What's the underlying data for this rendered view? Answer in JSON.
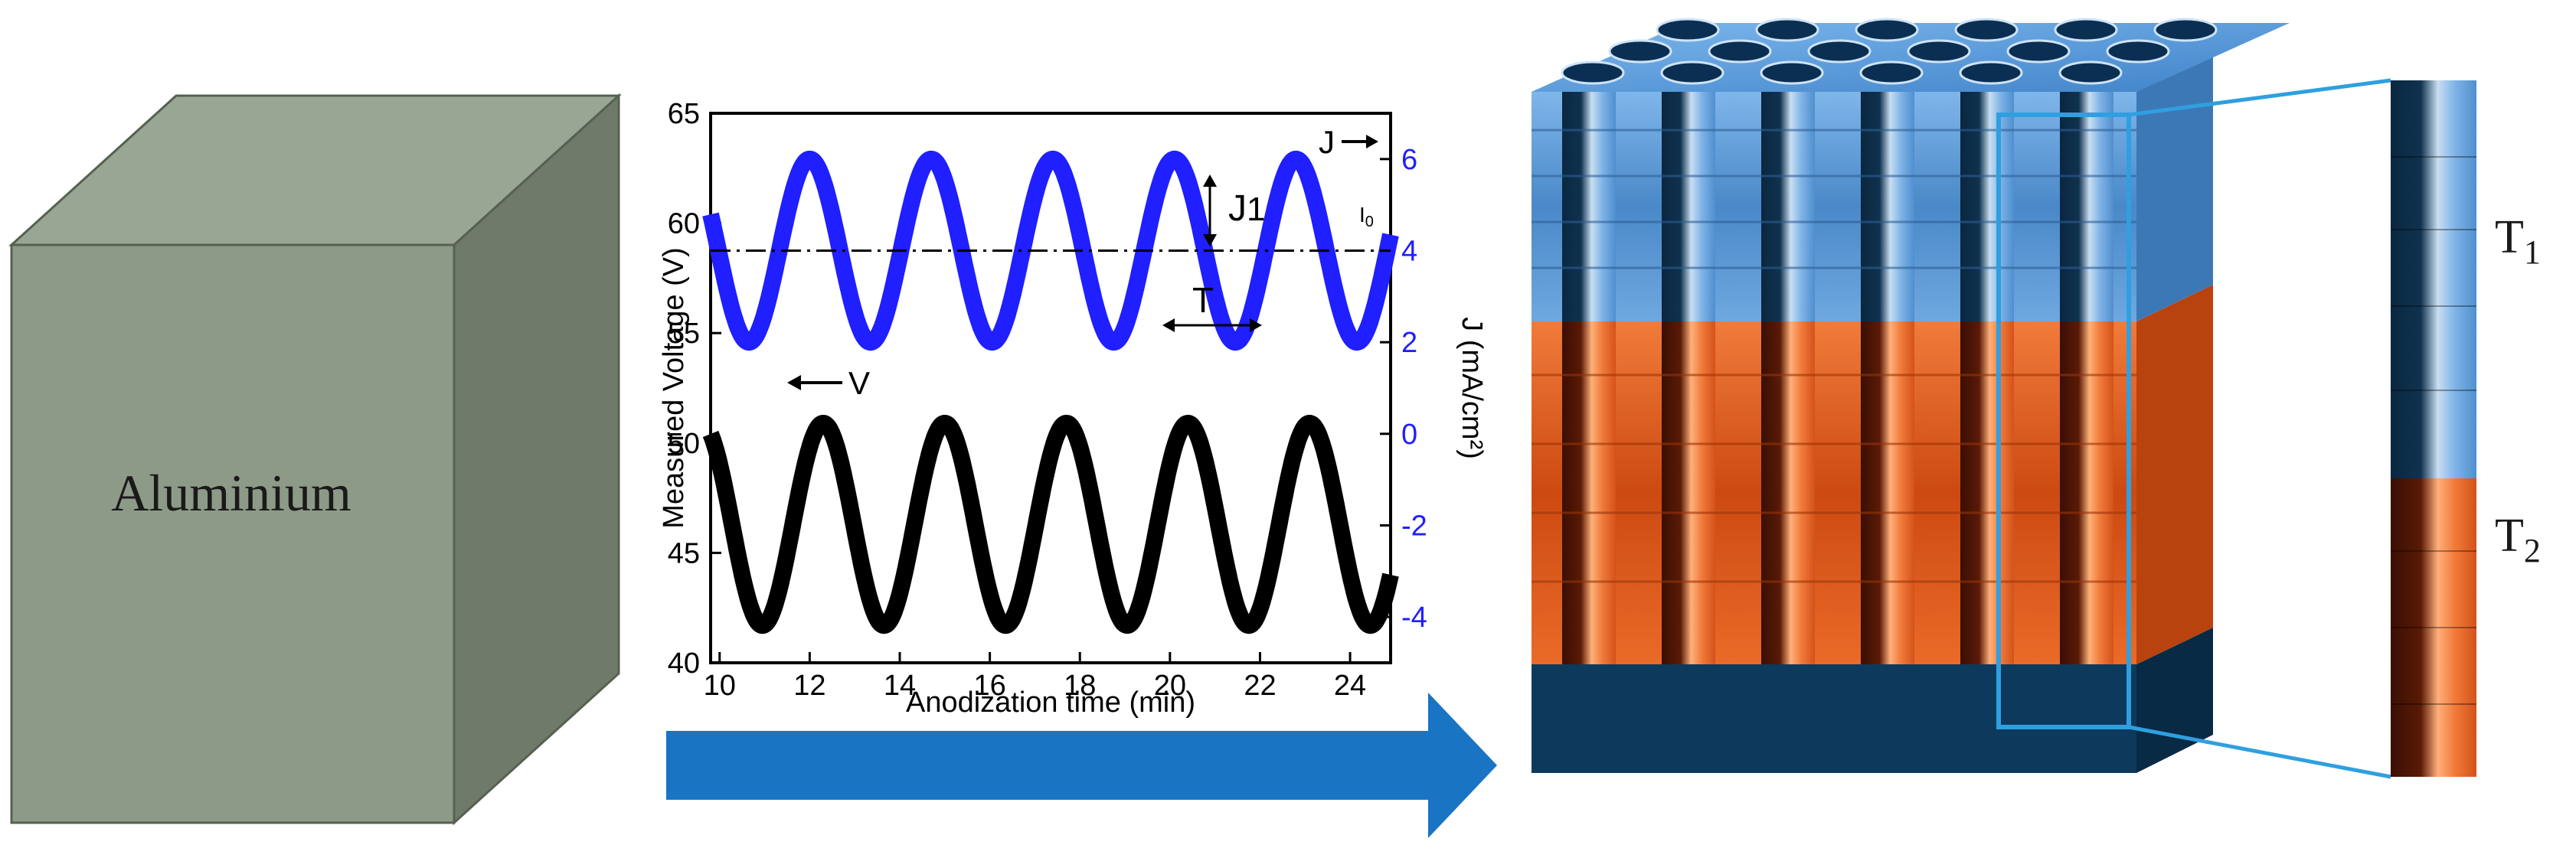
{
  "cube": {
    "label": "Aluminium",
    "colors": {
      "front": "#8e9a88",
      "top": "#9aa694",
      "side": "#6f7a6b",
      "edge": "#56614f"
    }
  },
  "arrow": {
    "color": "#1a74c4"
  },
  "chart_data": {
    "type": "line",
    "xlabel": "Anodization time (min)",
    "ylabel": "Measured Voltage (V)",
    "y2label": "J (mA/cm²)",
    "xlim": [
      9.8,
      24.9
    ],
    "ylim": [
      40,
      65
    ],
    "y2lim": [
      -5,
      7
    ],
    "xticks": [
      10,
      12,
      14,
      16,
      18,
      20,
      22,
      24
    ],
    "yticks": [
      40,
      45,
      50,
      55,
      60,
      65
    ],
    "y2ticks": [
      -4,
      -2,
      0,
      2,
      4,
      6
    ],
    "series": [
      {
        "name": "J",
        "axis": "right",
        "color": "#1f1fff",
        "mean": 4.0,
        "amplitude": 2.0,
        "period": 2.7,
        "peak_at": 12.0
      },
      {
        "name": "V",
        "axis": "left",
        "color": "#000000",
        "mean": 46.3,
        "amplitude": 4.6,
        "period": 2.7,
        "peak_at": 12.3
      }
    ],
    "reference_line": {
      "axis": "right",
      "value": 4.0,
      "style": "dash-dot"
    },
    "annotations": {
      "J_arrow": "J",
      "V_arrow": "V",
      "J1": "J",
      "J1_sub": "1",
      "I0": "I",
      "I0_sub": "0",
      "T": "T"
    },
    "grid": false
  },
  "nanostructure": {
    "colors": {
      "top_layer": "#6aa6e3",
      "pore": "#0b2f52",
      "bottom_layer": "#e65a1c",
      "base": "#0d3a5c"
    },
    "labels": {
      "t1": "T",
      "t1_sub": "1",
      "t2": "T",
      "t2_sub": "2"
    },
    "highlight_color": "#2f9fe0"
  }
}
